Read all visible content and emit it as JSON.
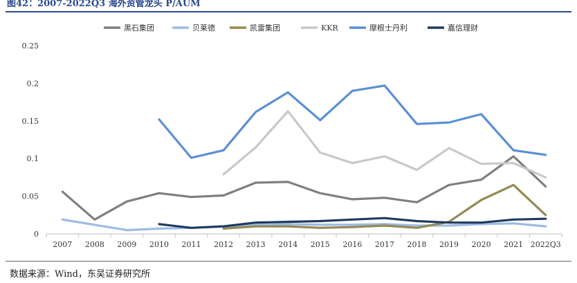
{
  "figure": {
    "title": "图42：2007-2022Q3 海外资管龙头 P/AUM",
    "source": "数据来源：Wind，东吴证券研究所"
  },
  "chart_data": {
    "type": "line",
    "title": "",
    "xlabel": "",
    "ylabel": "",
    "categories": [
      "2007",
      "2008",
      "2009",
      "2010",
      "2011",
      "2012",
      "2013",
      "2014",
      "2015",
      "2016",
      "2017",
      "2018",
      "2019",
      "2020",
      "2021",
      "2022Q3"
    ],
    "yticks": [
      "0",
      "0.05",
      "0.1",
      "0.15",
      "0.2",
      "0.25"
    ],
    "ylim": [
      0,
      0.25
    ],
    "grid": false,
    "legend": "top",
    "series": [
      {
        "name": "黑石集团",
        "color": "#7f7f7f",
        "values": [
          0.056,
          0.019,
          0.043,
          0.054,
          0.049,
          0.051,
          0.068,
          0.069,
          0.054,
          0.046,
          0.048,
          0.042,
          0.065,
          0.072,
          0.103,
          0.063
        ]
      },
      {
        "name": "贝莱德",
        "color": "#9dbbe3",
        "values": [
          0.019,
          0.012,
          0.005,
          0.007,
          0.008,
          0.01,
          0.012,
          0.013,
          0.012,
          0.012,
          0.013,
          0.011,
          0.011,
          0.013,
          0.014,
          0.01
        ]
      },
      {
        "name": "凯雷集团",
        "color": "#948a54",
        "values": [
          null,
          null,
          null,
          null,
          null,
          0.007,
          0.01,
          0.01,
          0.008,
          0.009,
          0.011,
          0.008,
          0.016,
          0.045,
          0.065,
          0.025
        ]
      },
      {
        "name": "KKR",
        "color": "#c8c8c8",
        "values": [
          null,
          null,
          null,
          null,
          null,
          0.079,
          0.115,
          0.163,
          0.108,
          0.094,
          0.103,
          0.085,
          0.114,
          0.093,
          0.094,
          0.075
        ]
      },
      {
        "name": "摩根士丹利",
        "color": "#5b8fd6",
        "values": [
          null,
          null,
          null,
          0.152,
          0.101,
          0.111,
          0.162,
          0.188,
          0.151,
          0.19,
          0.197,
          0.146,
          0.148,
          0.159,
          0.111,
          0.105
        ]
      },
      {
        "name": "嘉信理财",
        "color": "#1f3a5f",
        "values": [
          null,
          null,
          null,
          0.013,
          0.008,
          0.01,
          0.015,
          0.016,
          0.017,
          0.019,
          0.021,
          0.017,
          0.015,
          0.015,
          0.019,
          0.02
        ]
      }
    ]
  }
}
